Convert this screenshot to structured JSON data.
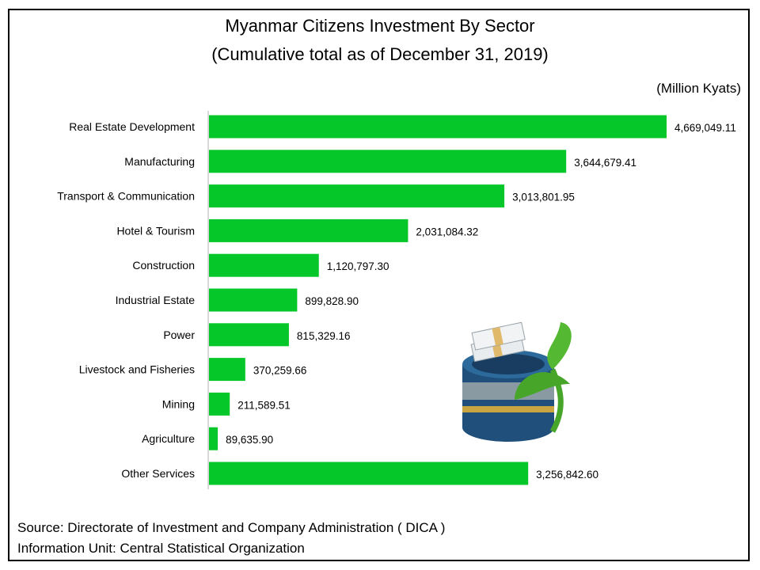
{
  "header": {
    "title": "Myanmar Citizens Investment By Sector",
    "subtitle": "(Cumulative total as of December 31, 2019)",
    "unit": "(Million Kyats)"
  },
  "footer": {
    "source": "Source: Directorate of Investment and Company Administration ( DICA )",
    "info_unit": "Information Unit:  Central Statistical Organization"
  },
  "colors": {
    "bar": "#06c72a"
  },
  "chart_data": {
    "type": "bar",
    "orientation": "horizontal",
    "title": "Myanmar Citizens Investment By Sector",
    "subtitle": "(Cumulative total as of December 31, 2019)",
    "unit": "(Million Kyats)",
    "categories": [
      "Real Estate Development",
      "Manufacturing",
      "Transport & Communication",
      "Hotel & Tourism",
      "Construction",
      "Industrial Estate",
      "Power",
      "Livestock and Fisheries",
      "Mining",
      "Agriculture",
      "Other Services"
    ],
    "values": [
      4669049.11,
      3644679.41,
      3013801.95,
      2031084.32,
      1120797.3,
      899828.9,
      815329.16,
      370259.66,
      211589.51,
      89635.9,
      3256842.6
    ],
    "value_labels": [
      "4,669,049.11",
      "3,644,679.41",
      "3,013,801.95",
      "2,031,084.32",
      "1,120,797.30",
      "899,828.90",
      "815,329.16",
      "370,259.66",
      "211,589.51",
      "89,635.90",
      "3,256,842.60"
    ],
    "grid": false,
    "legend": "none"
  }
}
